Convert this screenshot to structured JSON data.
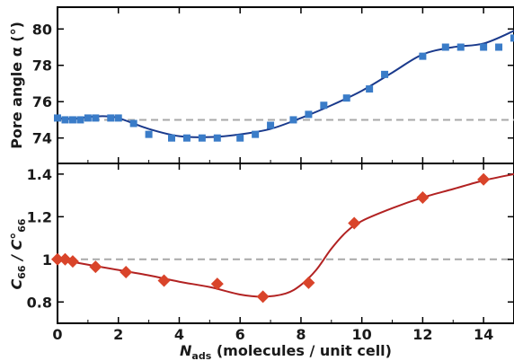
{
  "chart_data": [
    {
      "type": "scatter",
      "panel": "top",
      "ylabel": "Pore angle α (°)",
      "xlim": [
        0,
        15
      ],
      "ylim": [
        72.6,
        81.2
      ],
      "yticks": [
        74,
        76,
        78,
        80
      ],
      "xticks": [
        0,
        2,
        4,
        6,
        8,
        10,
        12,
        14
      ],
      "reference_line": 75,
      "marker": "square",
      "marker_color": "#3a7cc8",
      "fit_color": "#1a3a8c",
      "ref_color": "#a8a8a8",
      "points": {
        "x": [
          0,
          0.25,
          0.5,
          0.75,
          1.0,
          1.25,
          1.75,
          2.0,
          2.5,
          3.0,
          3.75,
          4.25,
          4.75,
          5.25,
          6.0,
          6.5,
          7.0,
          7.75,
          8.25,
          8.75,
          9.5,
          10.25,
          10.75,
          12.0,
          12.75,
          13.25,
          14.0,
          14.5,
          15.0
        ],
        "y": [
          75.1,
          75.0,
          75.0,
          75.0,
          75.1,
          75.1,
          75.1,
          75.1,
          74.8,
          74.2,
          74.0,
          74.0,
          74.0,
          74.0,
          74.0,
          74.2,
          74.7,
          75.0,
          75.3,
          75.8,
          76.2,
          76.7,
          77.5,
          78.5,
          79.0,
          79.0,
          79.0,
          79.0,
          79.5
        ]
      },
      "fit": {
        "x": [
          0,
          0.5,
          1.0,
          1.5,
          2.0,
          3.0,
          4.0,
          5.0,
          6.0,
          7.0,
          8.0,
          9.0,
          10.0,
          11.0,
          12.0,
          13.0,
          14.0,
          15.0
        ],
        "y": [
          75.1,
          75.05,
          75.15,
          75.2,
          75.1,
          74.5,
          74.1,
          74.05,
          74.2,
          74.5,
          75.1,
          75.8,
          76.6,
          77.6,
          78.6,
          79.0,
          79.2,
          79.9
        ]
      }
    },
    {
      "type": "scatter",
      "panel": "bottom",
      "ylabel_main": "C",
      "ylabel_sub": "66",
      "ylabel_sep": " / C°",
      "ylabel_sub2": "66",
      "xlabel_main": "N",
      "xlabel_sub": "ads",
      "xlabel_rest": " (molecules / unit cell)",
      "xlim": [
        0,
        15
      ],
      "ylim": [
        0.7,
        1.45
      ],
      "yticks": [
        0.8,
        1,
        1.2,
        1.4
      ],
      "ytick_labels": [
        "0.8",
        "1",
        "1.2",
        "1.4"
      ],
      "xticks": [
        0,
        2,
        4,
        6,
        8,
        10,
        12,
        14
      ],
      "reference_line": 1.0,
      "marker": "diamond",
      "marker_color": "#d9442a",
      "fit_color": "#b22222",
      "ref_color": "#a8a8a8",
      "points": {
        "x": [
          0,
          0.25,
          0.5,
          1.25,
          2.25,
          3.5,
          5.25,
          6.75,
          8.25,
          9.75,
          12.0,
          14.0
        ],
        "y": [
          1.0,
          1.0,
          0.99,
          0.965,
          0.94,
          0.9,
          0.885,
          0.825,
          0.89,
          1.17,
          1.29,
          1.375
        ]
      },
      "fit": {
        "x": [
          0,
          1.0,
          2.0,
          3.0,
          4.0,
          5.0,
          6.0,
          6.75,
          7.5,
          8.0,
          8.5,
          9.0,
          9.5,
          10.0,
          11.0,
          12.0,
          13.0,
          14.0,
          15.0
        ],
        "y": [
          1.0,
          0.975,
          0.95,
          0.925,
          0.895,
          0.87,
          0.835,
          0.825,
          0.84,
          0.88,
          0.95,
          1.05,
          1.13,
          1.18,
          1.24,
          1.29,
          1.33,
          1.37,
          1.4
        ]
      }
    }
  ]
}
